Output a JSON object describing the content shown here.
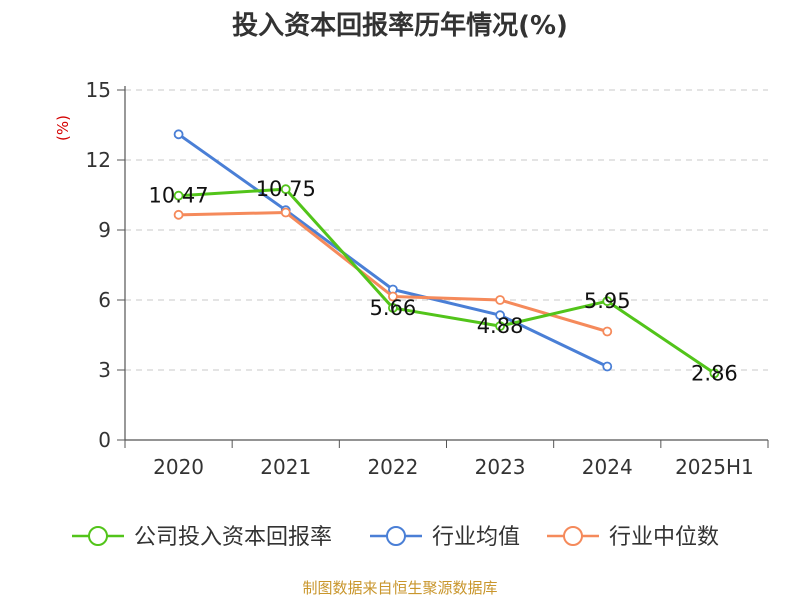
{
  "chart_data": {
    "type": "line",
    "title": "投入资本回报率历年情况(%)",
    "ylabel": "(%)",
    "xlabel": "",
    "categories": [
      "2020",
      "2021",
      "2022",
      "2023",
      "2024",
      "2025H1"
    ],
    "ylim": [
      0,
      15
    ],
    "yticks": [
      0,
      3,
      6,
      9,
      12,
      15
    ],
    "grid": true,
    "legend_position": "bottom",
    "series": [
      {
        "name": "公司投入资本回报率",
        "color": "#52c41a",
        "values": [
          10.47,
          10.75,
          5.66,
          4.88,
          5.95,
          2.86
        ],
        "data_labels": [
          "10.47",
          "10.75",
          "5.66",
          "4.88",
          "5.95",
          "2.86"
        ]
      },
      {
        "name": "行业均值",
        "color": "#4a7fd6",
        "values": [
          13.1,
          9.85,
          6.45,
          5.35,
          3.15,
          null
        ]
      },
      {
        "name": "行业中位数",
        "color": "#f58a5b",
        "values": [
          9.65,
          9.75,
          6.15,
          6.0,
          4.65,
          null
        ]
      }
    ]
  },
  "source_note": "制图数据来自恒生聚源数据库"
}
